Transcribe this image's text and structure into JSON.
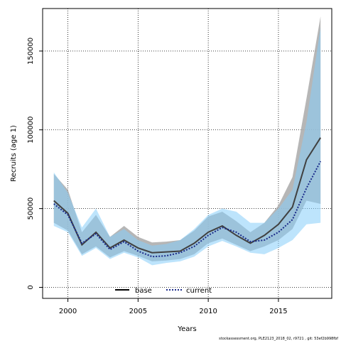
{
  "chart_data": {
    "type": "area",
    "xlabel": "Years",
    "ylabel": "Recruits (age 1)",
    "xlim": [
      1998.2,
      2018.8
    ],
    "ylim": [
      -7000,
      177000
    ],
    "x_ticks": [
      2000,
      2005,
      2010,
      2015
    ],
    "y_ticks": [
      0,
      50000,
      100000,
      150000
    ],
    "y_tick_labels": [
      "0",
      "50000",
      "100000",
      "150000"
    ],
    "grid": true,
    "legend_position": "bottom-center",
    "x": [
      1999,
      2000,
      2001,
      2002,
      2003,
      2004,
      2005,
      2006,
      2007,
      2008,
      2009,
      2010,
      2011,
      2012,
      2013,
      2014,
      2015,
      2016,
      2017,
      2018
    ],
    "series": [
      {
        "name": "base",
        "color": "#404040",
        "band_color": "#a9a9a9",
        "line_style": "solid",
        "values": [
          55000,
          47000,
          27000,
          35000,
          25000,
          30000,
          25000,
          22000,
          22500,
          23000,
          28000,
          35000,
          39000,
          33000,
          28000,
          33000,
          40000,
          51000,
          81000,
          95000
        ],
        "lower": [
          41000,
          36000,
          21000,
          26000,
          19000,
          23000,
          20000,
          16500,
          17000,
          18000,
          21000,
          28000,
          31000,
          27000,
          23000,
          26000,
          30000,
          37000,
          55000,
          53000
        ],
        "upper": [
          72000,
          62000,
          35000,
          46000,
          32000,
          39000,
          32000,
          28500,
          29000,
          30000,
          36000,
          45000,
          48000,
          42000,
          35000,
          41000,
          52000,
          70000,
          120000,
          172000
        ]
      },
      {
        "name": "current",
        "color": "#1a2a8a",
        "band_color": "#87cefa",
        "line_style": "dotted",
        "values": [
          53000,
          46000,
          28000,
          34000,
          24000,
          29000,
          23000,
          19500,
          20000,
          22000,
          26000,
          33000,
          38000,
          35000,
          29000,
          30000,
          35000,
          43000,
          63000,
          80000
        ],
        "lower": [
          39000,
          35000,
          20000,
          25000,
          18000,
          22000,
          19000,
          14000,
          15500,
          16500,
          19500,
          26000,
          29500,
          26000,
          22000,
          21000,
          25000,
          30000,
          40000,
          41000
        ],
        "upper": [
          73000,
          60000,
          38000,
          50000,
          32000,
          37000,
          30000,
          26500,
          27500,
          30000,
          37000,
          46000,
          50000,
          48000,
          41000,
          41000,
          50000,
          62000,
          105000,
          165000
        ]
      }
    ]
  },
  "footer": {
    "text": "stockassessment.org, PLE2123_2018_02, r9721 , git: 53ef2b998fbf"
  }
}
